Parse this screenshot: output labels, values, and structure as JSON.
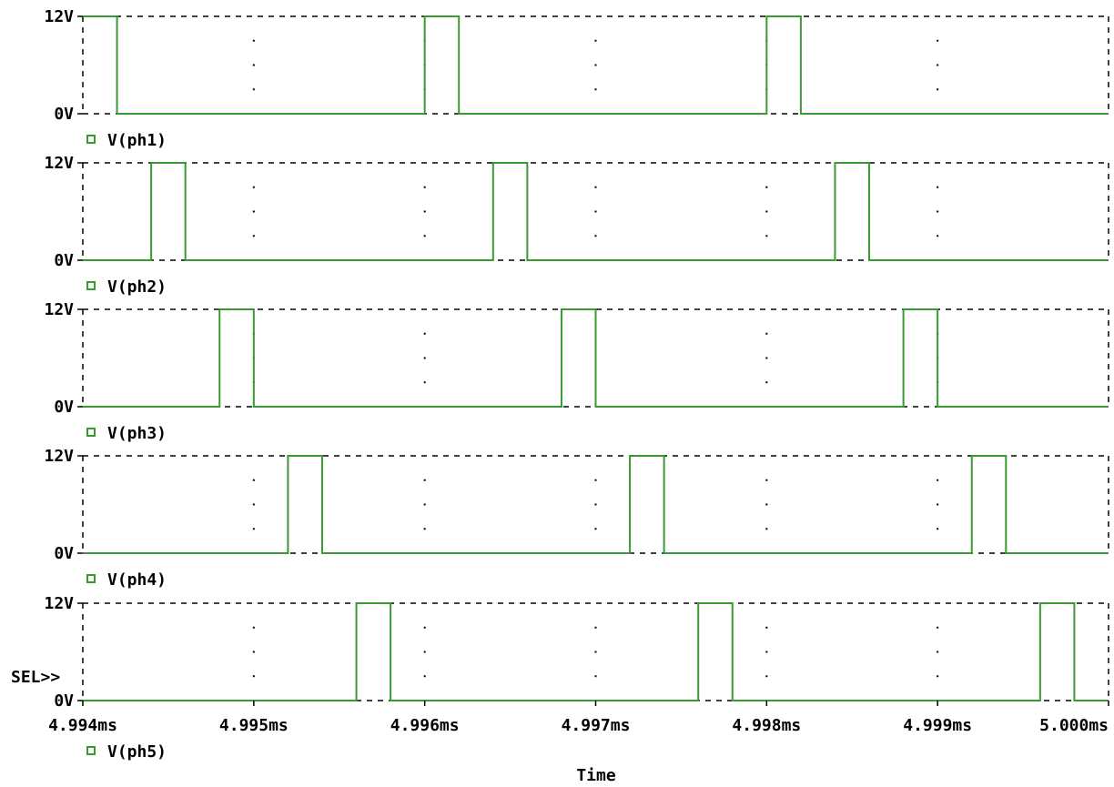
{
  "chart_data": {
    "type": "line",
    "xlabel": "Time",
    "xlim": [
      4.994,
      5.0
    ],
    "x_unit": "ms",
    "x_ticks": [
      "4.994ms",
      "4.995ms",
      "4.996ms",
      "4.997ms",
      "4.998ms",
      "4.999ms",
      "5.000ms"
    ],
    "ylim": [
      0,
      12
    ],
    "y_ticks": [
      "0V",
      "12V"
    ],
    "selected_marker": "SEL>>",
    "colors": {
      "trace": "#3a9a32",
      "grid": "#000000",
      "background": "#ffffff"
    },
    "series": [
      {
        "name": "V(ph1)",
        "high_intervals": [
          [
            4.994,
            4.9942
          ],
          [
            4.996,
            4.9962
          ],
          [
            4.998,
            4.9982
          ]
        ]
      },
      {
        "name": "V(ph2)",
        "high_intervals": [
          [
            4.9944,
            4.9946
          ],
          [
            4.9964,
            4.9966
          ],
          [
            4.9984,
            4.9986
          ]
        ]
      },
      {
        "name": "V(ph3)",
        "high_intervals": [
          [
            4.9948,
            4.995
          ],
          [
            4.9968,
            4.997
          ],
          [
            4.9988,
            4.999
          ]
        ]
      },
      {
        "name": "V(ph4)",
        "high_intervals": [
          [
            4.9952,
            4.9954
          ],
          [
            4.9972,
            4.9974
          ],
          [
            4.9992,
            4.9994
          ]
        ]
      },
      {
        "name": "V(ph5)",
        "high_intervals": [
          [
            4.9956,
            4.9958
          ],
          [
            4.9976,
            4.9978
          ],
          [
            4.9996,
            4.9998
          ]
        ]
      }
    ]
  }
}
